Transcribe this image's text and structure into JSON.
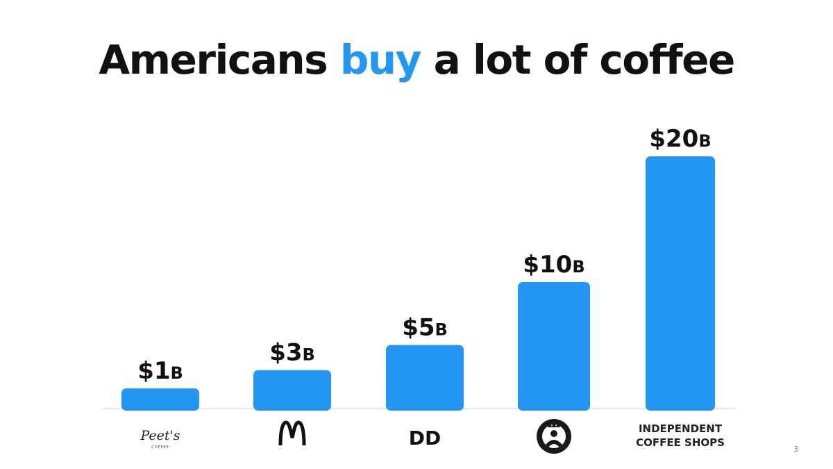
{
  "slide": {
    "title_prefix": "Americans ",
    "title_highlight": "buy",
    "title_suffix": " a lot of coffee",
    "page_number": "3"
  },
  "colors": {
    "bar": "#2196f3",
    "highlight": "#2196f3",
    "text": "#111111",
    "axis": "#dddddd"
  },
  "chart_data": {
    "type": "bar",
    "title": "Americans buy a lot of coffee",
    "categories": [
      "Peet's Coffee",
      "McDonald's",
      "Dunkin' Donuts",
      "Starbucks",
      "INDEPENDENT COFFEE SHOPS"
    ],
    "values": [
      1,
      3,
      5,
      10,
      20
    ],
    "value_labels": [
      "$1",
      "$3",
      "$5",
      "$10",
      "$20"
    ],
    "value_unit": "B",
    "category_label_kind": [
      "logo",
      "logo",
      "logo",
      "logo",
      "text"
    ],
    "category_text_lines": [
      [],
      [],
      [],
      [],
      [
        "INDEPENDENT",
        "COFFEE SHOPS"
      ]
    ],
    "logo_icons": [
      "peets-logo-icon",
      "mcdonalds-arches-icon",
      "dunkin-dd-icon",
      "starbucks-siren-icon",
      ""
    ],
    "logo_text": [
      "Peet's",
      "",
      "DD",
      "",
      ""
    ],
    "logo_subtext": [
      "COFFEE",
      "",
      "",
      "",
      ""
    ],
    "ylim": [
      0,
      20
    ],
    "grid": false,
    "legend": "none"
  }
}
